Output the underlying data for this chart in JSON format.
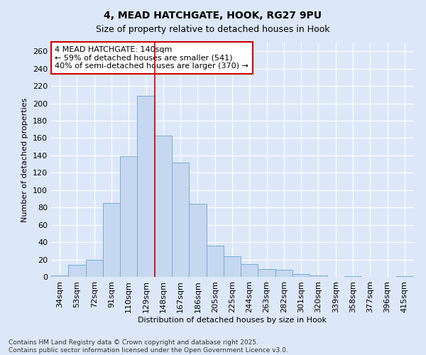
{
  "title": "4, MEAD HATCHGATE, HOOK, RG27 9PU",
  "subtitle": "Size of property relative to detached houses in Hook",
  "xlabel": "Distribution of detached houses by size in Hook",
  "ylabel": "Number of detached properties",
  "categories": [
    "34sqm",
    "53sqm",
    "72sqm",
    "91sqm",
    "110sqm",
    "129sqm",
    "148sqm",
    "167sqm",
    "186sqm",
    "205sqm",
    "225sqm",
    "244sqm",
    "263sqm",
    "282sqm",
    "301sqm",
    "320sqm",
    "339sqm",
    "358sqm",
    "377sqm",
    "396sqm",
    "415sqm"
  ],
  "values": [
    2,
    14,
    20,
    85,
    139,
    209,
    163,
    132,
    84,
    36,
    24,
    15,
    9,
    8,
    3,
    2,
    0,
    1,
    0,
    0,
    1
  ],
  "bar_color": "#c5d8f0",
  "bar_edge_color": "#7aabcf",
  "annotation_text": "4 MEAD HATCHGATE: 140sqm\n← 59% of detached houses are smaller (541)\n40% of semi-detached houses are larger (370) →",
  "box_color": "#cc0000",
  "ylim": [
    0,
    270
  ],
  "yticks": [
    0,
    20,
    40,
    60,
    80,
    100,
    120,
    140,
    160,
    180,
    200,
    220,
    240,
    260
  ],
  "background_color": "#dce8f8",
  "grid_color": "#ffffff",
  "footer": "Contains HM Land Registry data © Crown copyright and database right 2025.\nContains public sector information licensed under the Open Government Licence v3.0.",
  "title_fontsize": 10,
  "axis_label_fontsize": 8,
  "tick_fontsize": 8,
  "annotation_fontsize": 8,
  "footer_fontsize": 6.5
}
